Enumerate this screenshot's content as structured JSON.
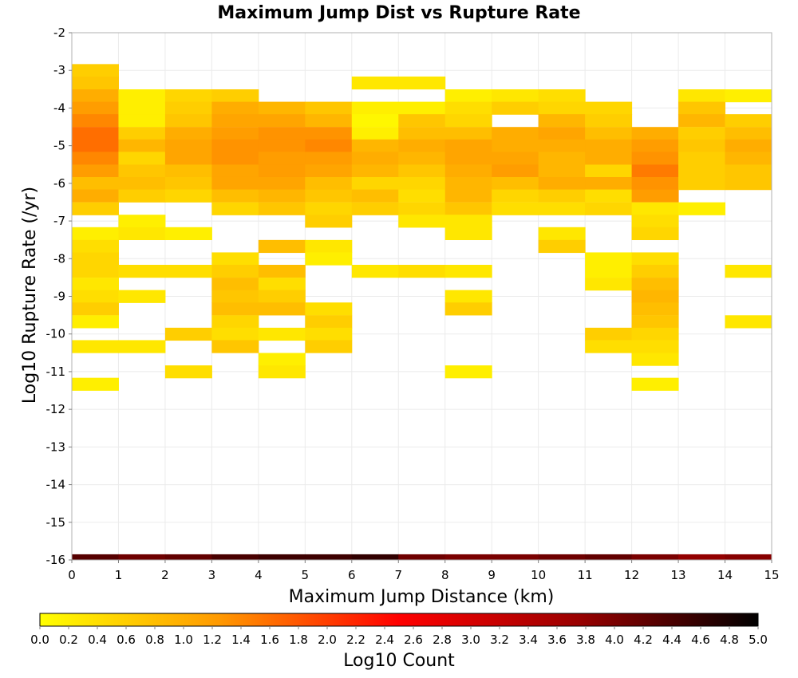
{
  "chart_data": {
    "type": "heatmap",
    "title": "Maximum Jump Dist vs Rupture Rate",
    "xlabel": "Maximum Jump Distance (km)",
    "ylabel": "Log10 Rupture Rate (/yr)",
    "xlim": [
      0,
      15
    ],
    "ylim": [
      -16,
      -2
    ],
    "xticks": [
      0,
      1,
      2,
      3,
      4,
      5,
      6,
      7,
      8,
      9,
      10,
      11,
      12,
      13,
      14,
      15
    ],
    "yticks": [
      -2,
      -3,
      -4,
      -5,
      -6,
      -7,
      -8,
      -9,
      -10,
      -11,
      -12,
      -13,
      -14,
      -15,
      -16
    ],
    "x_bin_width": 1,
    "y_bin_height": 0.333,
    "grid": true,
    "colorbar": {
      "label": "Log10 Count",
      "range": [
        0,
        5
      ],
      "ticks": [
        "0.0",
        "0.2",
        "0.4",
        "0.6",
        "0.8",
        "1.0",
        "1.2",
        "1.4",
        "1.6",
        "1.8",
        "2.0",
        "2.2",
        "2.4",
        "2.6",
        "2.8",
        "3.0",
        "3.2",
        "3.4",
        "3.6",
        "3.8",
        "4.0",
        "4.2",
        "4.4",
        "4.6",
        "4.8",
        "5.0"
      ],
      "colors": [
        "#ffff00",
        "#ff9900",
        "#ff0000",
        "#990000",
        "#000000"
      ],
      "placement": "bottom"
    },
    "cells": [
      [
        0,
        -3.0,
        0.6
      ],
      [
        0,
        -3.33,
        0.7
      ],
      [
        0,
        -3.67,
        1.0
      ],
      [
        0,
        -4.0,
        1.2
      ],
      [
        0,
        -4.33,
        1.4
      ],
      [
        0,
        -4.67,
        1.6
      ],
      [
        0,
        -5.0,
        1.6
      ],
      [
        0,
        -5.33,
        1.4
      ],
      [
        0,
        -5.67,
        1.2
      ],
      [
        0,
        -6.0,
        0.8
      ],
      [
        0,
        -6.33,
        1.0
      ],
      [
        0,
        -6.67,
        0.6
      ],
      [
        0,
        -7.33,
        0.2
      ],
      [
        0,
        -7.67,
        0.4
      ],
      [
        0,
        -8.0,
        0.5
      ],
      [
        0,
        -8.33,
        0.5
      ],
      [
        0,
        -8.67,
        0.3
      ],
      [
        0,
        -9.0,
        0.4
      ],
      [
        0,
        -9.33,
        0.6
      ],
      [
        0,
        -9.67,
        0.2
      ],
      [
        0,
        -10.33,
        0.3
      ],
      [
        0,
        -11.33,
        0.2
      ],
      [
        1,
        -3.67,
        0.2
      ],
      [
        1,
        -4.0,
        0.2
      ],
      [
        1,
        -4.33,
        0.2
      ],
      [
        1,
        -4.67,
        0.6
      ],
      [
        1,
        -5.0,
        0.9
      ],
      [
        1,
        -5.33,
        0.5
      ],
      [
        1,
        -5.67,
        0.7
      ],
      [
        1,
        -6.0,
        0.8
      ],
      [
        1,
        -6.33,
        0.6
      ],
      [
        1,
        -7.0,
        0.2
      ],
      [
        1,
        -7.33,
        0.3
      ],
      [
        1,
        -8.33,
        0.4
      ],
      [
        1,
        -9.0,
        0.3
      ],
      [
        1,
        -10.33,
        0.3
      ],
      [
        2,
        -3.67,
        0.5
      ],
      [
        2,
        -4.0,
        0.6
      ],
      [
        2,
        -4.33,
        0.7
      ],
      [
        2,
        -4.67,
        1.0
      ],
      [
        2,
        -5.0,
        1.1
      ],
      [
        2,
        -5.33,
        1.1
      ],
      [
        2,
        -5.67,
        0.8
      ],
      [
        2,
        -6.0,
        0.7
      ],
      [
        2,
        -6.33,
        0.5
      ],
      [
        2,
        -7.33,
        0.2
      ],
      [
        2,
        -8.33,
        0.4
      ],
      [
        2,
        -10.0,
        0.6
      ],
      [
        2,
        -11.0,
        0.4
      ],
      [
        3,
        -3.67,
        0.6
      ],
      [
        3,
        -4.0,
        1.0
      ],
      [
        3,
        -4.33,
        1.1
      ],
      [
        3,
        -4.67,
        1.2
      ],
      [
        3,
        -5.0,
        1.3
      ],
      [
        3,
        -5.33,
        1.3
      ],
      [
        3,
        -5.67,
        1.1
      ],
      [
        3,
        -6.0,
        1.1
      ],
      [
        3,
        -6.33,
        0.8
      ],
      [
        3,
        -6.67,
        0.5
      ],
      [
        3,
        -8.0,
        0.4
      ],
      [
        3,
        -8.33,
        0.6
      ],
      [
        3,
        -8.67,
        0.8
      ],
      [
        3,
        -9.0,
        0.7
      ],
      [
        3,
        -9.33,
        0.8
      ],
      [
        3,
        -9.67,
        0.5
      ],
      [
        3,
        -10.0,
        0.4
      ],
      [
        3,
        -10.33,
        0.7
      ],
      [
        4,
        -4.0,
        0.9
      ],
      [
        4,
        -4.33,
        1.1
      ],
      [
        4,
        -4.67,
        1.3
      ],
      [
        4,
        -5.0,
        1.3
      ],
      [
        4,
        -5.33,
        1.2
      ],
      [
        4,
        -5.67,
        1.2
      ],
      [
        4,
        -6.0,
        1.1
      ],
      [
        4,
        -6.33,
        0.9
      ],
      [
        4,
        -6.67,
        0.7
      ],
      [
        4,
        -7.67,
        0.8
      ],
      [
        4,
        -8.33,
        0.8
      ],
      [
        4,
        -8.67,
        0.4
      ],
      [
        4,
        -9.0,
        0.6
      ],
      [
        4,
        -9.33,
        0.8
      ],
      [
        4,
        -10.0,
        0.3
      ],
      [
        4,
        -10.67,
        0.2
      ],
      [
        4,
        -11.0,
        0.3
      ],
      [
        5,
        -4.0,
        0.7
      ],
      [
        5,
        -4.33,
        0.9
      ],
      [
        5,
        -4.67,
        1.3
      ],
      [
        5,
        -5.0,
        1.4
      ],
      [
        5,
        -5.33,
        1.2
      ],
      [
        5,
        -5.67,
        1.1
      ],
      [
        5,
        -6.0,
        0.8
      ],
      [
        5,
        -6.33,
        0.7
      ],
      [
        5,
        -6.67,
        0.5
      ],
      [
        5,
        -7.0,
        0.6
      ],
      [
        5,
        -7.67,
        0.3
      ],
      [
        5,
        -8.0,
        0.2
      ],
      [
        5,
        -9.33,
        0.4
      ],
      [
        5,
        -9.67,
        0.6
      ],
      [
        5,
        -10.0,
        0.4
      ],
      [
        5,
        -10.33,
        0.6
      ],
      [
        6,
        -3.33,
        0.3
      ],
      [
        6,
        -4.0,
        0.2
      ],
      [
        6,
        -4.33,
        0.1
      ],
      [
        6,
        -4.67,
        0.2
      ],
      [
        6,
        -5.0,
        0.9
      ],
      [
        6,
        -5.33,
        1.0
      ],
      [
        6,
        -5.67,
        0.9
      ],
      [
        6,
        -6.0,
        0.5
      ],
      [
        6,
        -6.33,
        0.8
      ],
      [
        6,
        -6.67,
        0.6
      ],
      [
        6,
        -8.33,
        0.3
      ],
      [
        7,
        -3.33,
        0.3
      ],
      [
        7,
        -4.0,
        0.2
      ],
      [
        7,
        -4.33,
        0.7
      ],
      [
        7,
        -4.67,
        0.8
      ],
      [
        7,
        -5.0,
        1.0
      ],
      [
        7,
        -5.33,
        0.9
      ],
      [
        7,
        -5.67,
        0.7
      ],
      [
        7,
        -6.0,
        0.5
      ],
      [
        7,
        -6.33,
        0.4
      ],
      [
        7,
        -6.67,
        0.5
      ],
      [
        7,
        -7.0,
        0.3
      ],
      [
        7,
        -8.33,
        0.4
      ],
      [
        8,
        -3.67,
        0.2
      ],
      [
        8,
        -4.0,
        0.4
      ],
      [
        8,
        -4.33,
        0.5
      ],
      [
        8,
        -4.67,
        0.8
      ],
      [
        8,
        -5.0,
        1.1
      ],
      [
        8,
        -5.33,
        1.1
      ],
      [
        8,
        -5.67,
        1.0
      ],
      [
        8,
        -6.0,
        0.9
      ],
      [
        8,
        -6.33,
        0.9
      ],
      [
        8,
        -6.67,
        0.7
      ],
      [
        8,
        -7.0,
        0.3
      ],
      [
        8,
        -7.33,
        0.3
      ],
      [
        8,
        -8.33,
        0.3
      ],
      [
        8,
        -9.0,
        0.3
      ],
      [
        8,
        -9.33,
        0.6
      ],
      [
        8,
        -11.0,
        0.2
      ],
      [
        9,
        -3.67,
        0.3
      ],
      [
        9,
        -4.0,
        0.6
      ],
      [
        9,
        -4.67,
        1.0
      ],
      [
        9,
        -5.0,
        1.0
      ],
      [
        9,
        -5.33,
        1.1
      ],
      [
        9,
        -5.67,
        1.2
      ],
      [
        9,
        -6.0,
        0.8
      ],
      [
        9,
        -6.33,
        0.5
      ],
      [
        9,
        -6.67,
        0.4
      ],
      [
        10,
        -3.67,
        0.4
      ],
      [
        10,
        -4.0,
        0.5
      ],
      [
        10,
        -4.33,
        0.9
      ],
      [
        10,
        -4.67,
        1.1
      ],
      [
        10,
        -5.0,
        1.0
      ],
      [
        10,
        -5.33,
        0.9
      ],
      [
        10,
        -5.67,
        0.9
      ],
      [
        10,
        -6.0,
        1.0
      ],
      [
        10,
        -6.33,
        0.6
      ],
      [
        10,
        -6.67,
        0.4
      ],
      [
        10,
        -7.33,
        0.3
      ],
      [
        10,
        -7.67,
        0.6
      ],
      [
        11,
        -4.0,
        0.5
      ],
      [
        11,
        -4.33,
        0.6
      ],
      [
        11,
        -4.67,
        0.8
      ],
      [
        11,
        -5.0,
        1.0
      ],
      [
        11,
        -5.33,
        1.0
      ],
      [
        11,
        -5.67,
        0.5
      ],
      [
        11,
        -6.0,
        1.0
      ],
      [
        11,
        -6.33,
        0.4
      ],
      [
        11,
        -6.67,
        0.5
      ],
      [
        11,
        -8.0,
        0.2
      ],
      [
        11,
        -8.33,
        0.2
      ],
      [
        11,
        -8.67,
        0.3
      ],
      [
        11,
        -10.0,
        0.6
      ],
      [
        11,
        -10.33,
        0.4
      ],
      [
        12,
        -4.67,
        1.0
      ],
      [
        12,
        -5.0,
        1.2
      ],
      [
        12,
        -5.33,
        1.3
      ],
      [
        12,
        -5.67,
        1.5
      ],
      [
        12,
        -6.0,
        1.3
      ],
      [
        12,
        -6.33,
        1.2
      ],
      [
        12,
        -6.67,
        0.3
      ],
      [
        12,
        -7.0,
        0.4
      ],
      [
        12,
        -7.33,
        0.5
      ],
      [
        12,
        -8.0,
        0.4
      ],
      [
        12,
        -8.33,
        0.6
      ],
      [
        12,
        -8.67,
        0.8
      ],
      [
        12,
        -9.0,
        0.9
      ],
      [
        12,
        -9.33,
        0.8
      ],
      [
        12,
        -9.67,
        0.7
      ],
      [
        12,
        -10.0,
        0.5
      ],
      [
        12,
        -10.33,
        0.4
      ],
      [
        12,
        -10.67,
        0.3
      ],
      [
        12,
        -11.33,
        0.2
      ],
      [
        13,
        -3.67,
        0.3
      ],
      [
        13,
        -4.0,
        0.7
      ],
      [
        13,
        -4.33,
        0.9
      ],
      [
        13,
        -4.67,
        0.6
      ],
      [
        13,
        -5.0,
        0.7
      ],
      [
        13,
        -5.33,
        0.6
      ],
      [
        13,
        -5.67,
        0.6
      ],
      [
        13,
        -6.0,
        0.6
      ],
      [
        13,
        -6.67,
        0.2
      ],
      [
        14,
        -3.67,
        0.2
      ],
      [
        14,
        -4.33,
        0.6
      ],
      [
        14,
        -4.67,
        0.8
      ],
      [
        14,
        -5.0,
        1.0
      ],
      [
        14,
        -5.33,
        0.9
      ],
      [
        14,
        -5.67,
        0.7
      ],
      [
        14,
        -6.0,
        0.7
      ],
      [
        14,
        -8.33,
        0.3
      ],
      [
        14,
        -9.67,
        0.3
      ]
    ],
    "zero_rate_row": {
      "y": -16,
      "height": 0.15,
      "values": [
        4.3,
        4.1,
        4.2,
        4.4,
        4.5,
        4.5,
        4.6,
        4.1,
        4.0,
        4.0,
        4.1,
        4.2,
        4.0,
        3.8,
        3.9
      ]
    }
  }
}
